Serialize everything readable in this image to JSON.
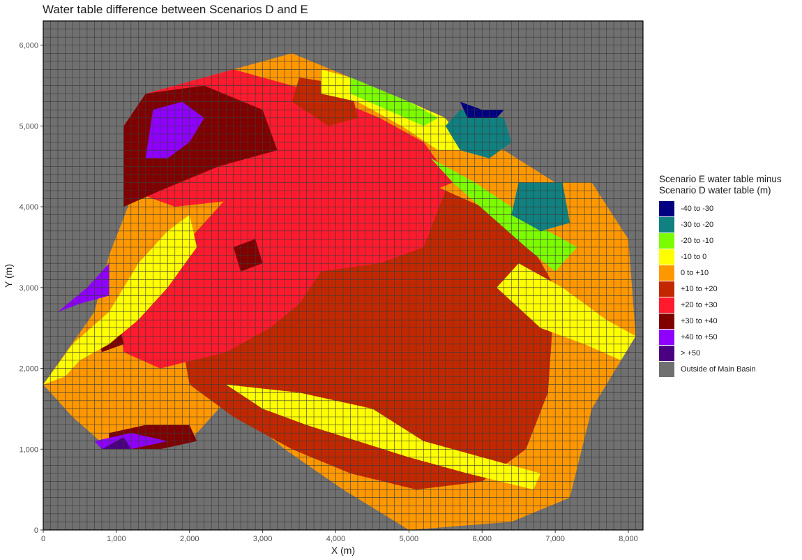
{
  "chart_data": {
    "type": "heatmap",
    "title": "Water table difference between Scenarios D and E",
    "xlabel": "X (m)",
    "ylabel": "Y (m)",
    "xlim": [
      0,
      8200
    ],
    "ylim": [
      0,
      6300
    ],
    "x_ticks": [
      0,
      1000,
      2000,
      3000,
      4000,
      5000,
      6000,
      7000,
      8000
    ],
    "x_tick_labels": [
      "0",
      "1,000",
      "2,000",
      "3,000",
      "4,000",
      "5,000",
      "6,000",
      "7,000",
      "8,000"
    ],
    "y_ticks": [
      0,
      1000,
      2000,
      3000,
      4000,
      5000,
      6000
    ],
    "y_tick_labels": [
      "0",
      "1,000",
      "2,000",
      "3,000",
      "4,000",
      "5,000",
      "6,000"
    ],
    "cell_size": 100,
    "legend": {
      "position": "right",
      "title_line1": "Scenario E water table minus",
      "title_line2": "Scenario D water table (m)",
      "categories": [
        {
          "label": "-40 to -30",
          "color": "#000080"
        },
        {
          "label": "-30 to -20",
          "color": "#108080"
        },
        {
          "label": "-20 to -10",
          "color": "#7CFC00"
        },
        {
          "label": "-10 to 0",
          "color": "#FFFF00"
        },
        {
          "label": "0 to +10",
          "color": "#FF9800"
        },
        {
          "label": "+10 to +20",
          "color": "#C22800"
        },
        {
          "label": "+20 to +30",
          "color": "#FF1A2E"
        },
        {
          "label": "+30 to +40",
          "color": "#800000"
        },
        {
          "label": "+40 to +50",
          "color": "#8F00FF"
        },
        {
          "label": "> +50",
          "color": "#4B0082"
        },
        {
          "label": "Outside of Main Basin",
          "color": "#707070"
        }
      ]
    },
    "outside_color": "#707070",
    "grid_color": "#3a3a3a",
    "basin_outline": [
      [
        0,
        1800
      ],
      [
        700,
        2700
      ],
      [
        900,
        3400
      ],
      [
        1200,
        4100
      ],
      [
        1100,
        5000
      ],
      [
        1400,
        5400
      ],
      [
        2600,
        5700
      ],
      [
        3400,
        5900
      ],
      [
        4200,
        5600
      ],
      [
        5000,
        5300
      ],
      [
        5500,
        5000
      ],
      [
        6300,
        4700
      ],
      [
        7000,
        4300
      ],
      [
        7500,
        4300
      ],
      [
        8000,
        3600
      ],
      [
        8100,
        2400
      ],
      [
        7500,
        1500
      ],
      [
        7200,
        400
      ],
      [
        6400,
        100
      ],
      [
        5000,
        0
      ],
      [
        4100,
        500
      ],
      [
        3300,
        1000
      ],
      [
        2500,
        1600
      ],
      [
        2000,
        1100
      ],
      [
        1600,
        1000
      ],
      [
        900,
        1000
      ],
      [
        400,
        1400
      ]
    ],
    "zones": [
      {
        "category": "0 to +10",
        "polygon": [
          [
            0,
            1800
          ],
          [
            700,
            2700
          ],
          [
            900,
            3400
          ],
          [
            1200,
            4100
          ],
          [
            1100,
            5000
          ],
          [
            1400,
            5400
          ],
          [
            2600,
            5700
          ],
          [
            3400,
            5900
          ],
          [
            4200,
            5600
          ],
          [
            5000,
            5300
          ],
          [
            5500,
            5000
          ],
          [
            6300,
            4700
          ],
          [
            7000,
            4300
          ],
          [
            7500,
            4300
          ],
          [
            8000,
            3600
          ],
          [
            8100,
            2400
          ],
          [
            7500,
            1500
          ],
          [
            7200,
            400
          ],
          [
            6400,
            100
          ],
          [
            5000,
            0
          ],
          [
            4100,
            500
          ],
          [
            3300,
            1000
          ],
          [
            2500,
            1600
          ],
          [
            2000,
            1100
          ],
          [
            1600,
            1000
          ],
          [
            900,
            1000
          ],
          [
            400,
            1400
          ]
        ]
      },
      {
        "category": "+10 to +20",
        "polygon": [
          [
            2000,
            1800
          ],
          [
            2600,
            1400
          ],
          [
            3400,
            1000
          ],
          [
            4200,
            700
          ],
          [
            5100,
            500
          ],
          [
            6000,
            600
          ],
          [
            6600,
            1000
          ],
          [
            6900,
            1700
          ],
          [
            7000,
            3000
          ],
          [
            6500,
            3800
          ],
          [
            5500,
            4200
          ],
          [
            4500,
            4400
          ],
          [
            3200,
            4200
          ],
          [
            2200,
            3600
          ],
          [
            1800,
            2800
          ]
        ]
      },
      {
        "category": "+20 to +30",
        "polygon": [
          [
            1000,
            2800
          ],
          [
            1900,
            3500
          ],
          [
            2600,
            4200
          ],
          [
            3600,
            4500
          ],
          [
            4800,
            4500
          ],
          [
            5500,
            4200
          ],
          [
            5200,
            3500
          ],
          [
            4600,
            3300
          ],
          [
            3800,
            3200
          ],
          [
            3500,
            2800
          ],
          [
            3100,
            2500
          ],
          [
            2500,
            2200
          ],
          [
            1600,
            2000
          ],
          [
            1100,
            2200
          ]
        ]
      },
      {
        "category": "+20 to +30",
        "polygon": [
          [
            1200,
            4200
          ],
          [
            1400,
            5400
          ],
          [
            2600,
            5700
          ],
          [
            3800,
            5400
          ],
          [
            4600,
            5100
          ],
          [
            5200,
            4800
          ],
          [
            5600,
            4300
          ],
          [
            4800,
            4000
          ],
          [
            3800,
            3900
          ],
          [
            2800,
            4100
          ],
          [
            1800,
            4000
          ]
        ]
      },
      {
        "category": "+10 to +20",
        "polygon": [
          [
            3500,
            5600
          ],
          [
            4200,
            5500
          ],
          [
            4300,
            5100
          ],
          [
            3900,
            5000
          ],
          [
            3400,
            5300
          ]
        ]
      },
      {
        "category": "+30 to +40",
        "polygon": [
          [
            1100,
            4000
          ],
          [
            1100,
            5000
          ],
          [
            1400,
            5400
          ],
          [
            2200,
            5500
          ],
          [
            3000,
            5200
          ],
          [
            3200,
            4700
          ],
          [
            2400,
            4500
          ],
          [
            1600,
            4200
          ]
        ]
      },
      {
        "category": "+30 to +40",
        "polygon": [
          [
            2600,
            3500
          ],
          [
            2900,
            3600
          ],
          [
            3000,
            3300
          ],
          [
            2700,
            3200
          ]
        ]
      },
      {
        "category": "+30 to +40",
        "polygon": [
          [
            700,
            2500
          ],
          [
            1000,
            2700
          ],
          [
            1100,
            2300
          ],
          [
            800,
            2200
          ]
        ]
      },
      {
        "category": "+30 to +40",
        "polygon": [
          [
            900,
            1200
          ],
          [
            1400,
            1300
          ],
          [
            2000,
            1300
          ],
          [
            2100,
            1100
          ],
          [
            1600,
            1000
          ],
          [
            900,
            1000
          ]
        ]
      },
      {
        "category": "+40 to +50",
        "polygon": [
          [
            1400,
            4600
          ],
          [
            1500,
            5200
          ],
          [
            1900,
            5300
          ],
          [
            2200,
            5100
          ],
          [
            2000,
            4800
          ],
          [
            1700,
            4600
          ]
        ]
      },
      {
        "category": "+40 to +50",
        "polygon": [
          [
            200,
            2700
          ],
          [
            600,
            3000
          ],
          [
            900,
            3300
          ],
          [
            900,
            2900
          ],
          [
            500,
            2800
          ]
        ]
      },
      {
        "category": "+40 to +50",
        "polygon": [
          [
            700,
            1100
          ],
          [
            1200,
            1200
          ],
          [
            1700,
            1100
          ],
          [
            1200,
            1000
          ],
          [
            800,
            1000
          ]
        ]
      },
      {
        "category": "> +50",
        "polygon": [
          [
            800,
            1000
          ],
          [
            1100,
            1150
          ],
          [
            1200,
            1000
          ]
        ]
      },
      {
        "category": "-10 to 0",
        "polygon": [
          [
            0,
            1800
          ],
          [
            400,
            2300
          ],
          [
            900,
            2700
          ],
          [
            1300,
            3300
          ],
          [
            1700,
            3700
          ],
          [
            2000,
            3900
          ],
          [
            2100,
            3500
          ],
          [
            1700,
            3000
          ],
          [
            1300,
            2600
          ],
          [
            900,
            2300
          ],
          [
            500,
            2100
          ],
          [
            300,
            1900
          ]
        ]
      },
      {
        "category": "-10 to 0",
        "polygon": [
          [
            2500,
            1800
          ],
          [
            3500,
            1700
          ],
          [
            4500,
            1500
          ],
          [
            5200,
            1100
          ],
          [
            6000,
            900
          ],
          [
            6800,
            700
          ],
          [
            6700,
            500
          ],
          [
            5800,
            700
          ],
          [
            5000,
            900
          ],
          [
            4300,
            1100
          ],
          [
            3600,
            1300
          ],
          [
            3000,
            1500
          ]
        ]
      },
      {
        "category": "-10 to 0",
        "polygon": [
          [
            6200,
            3000
          ],
          [
            6500,
            3300
          ],
          [
            7100,
            3000
          ],
          [
            7700,
            2600
          ],
          [
            8100,
            2400
          ],
          [
            7900,
            2100
          ],
          [
            7400,
            2300
          ],
          [
            6800,
            2500
          ]
        ]
      },
      {
        "category": "-10 to 0",
        "polygon": [
          [
            3800,
            5700
          ],
          [
            4200,
            5600
          ],
          [
            5000,
            5300
          ],
          [
            5500,
            5100
          ],
          [
            5800,
            4700
          ],
          [
            5400,
            4700
          ],
          [
            4900,
            5000
          ],
          [
            4300,
            5300
          ],
          [
            3800,
            5400
          ]
        ]
      },
      {
        "category": "-20 to -10",
        "polygon": [
          [
            4200,
            5600
          ],
          [
            5000,
            5300
          ],
          [
            5400,
            5100
          ],
          [
            5200,
            5000
          ],
          [
            4700,
            5200
          ],
          [
            4200,
            5400
          ]
        ]
      },
      {
        "category": "-20 to -10",
        "polygon": [
          [
            5300,
            4600
          ],
          [
            5900,
            4300
          ],
          [
            6400,
            4000
          ],
          [
            6900,
            3700
          ],
          [
            7300,
            3500
          ],
          [
            7000,
            3200
          ],
          [
            6600,
            3500
          ],
          [
            6100,
            3900
          ],
          [
            5600,
            4300
          ]
        ]
      },
      {
        "category": "-30 to -20",
        "polygon": [
          [
            5500,
            5000
          ],
          [
            5700,
            5200
          ],
          [
            6300,
            5100
          ],
          [
            6400,
            4800
          ],
          [
            6100,
            4600
          ],
          [
            5700,
            4700
          ]
        ]
      },
      {
        "category": "-30 to -20",
        "polygon": [
          [
            6500,
            4300
          ],
          [
            7100,
            4300
          ],
          [
            7200,
            3800
          ],
          [
            6800,
            3700
          ],
          [
            6400,
            3900
          ]
        ]
      },
      {
        "category": "-40 to -30",
        "polygon": [
          [
            5700,
            5300
          ],
          [
            6000,
            5200
          ],
          [
            6300,
            5200
          ],
          [
            6200,
            5100
          ],
          [
            5800,
            5100
          ]
        ]
      }
    ]
  }
}
